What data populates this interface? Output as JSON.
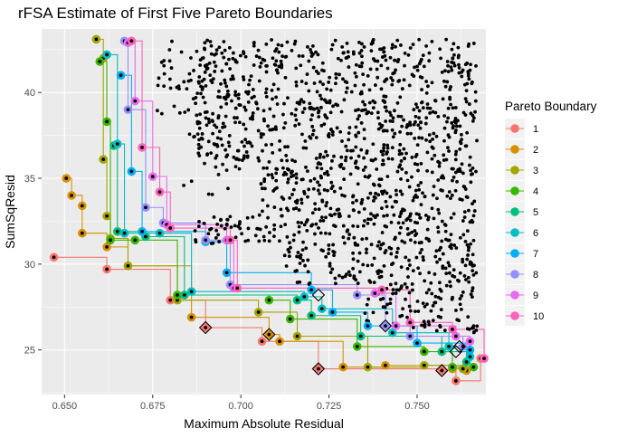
{
  "chart_data": {
    "type": "scatter",
    "title": "rFSA Estimate of First Five Pareto Boundaries",
    "xlabel": "Maximum Absolute Residual",
    "ylabel": "SumSqResid",
    "xlim": [
      0.6435,
      0.7695
    ],
    "ylim": [
      22.4,
      43.7
    ],
    "x_ticks": [
      0.65,
      0.675,
      0.7,
      0.725,
      0.75
    ],
    "x_tick_labels": [
      "0.650",
      "0.675",
      "0.700",
      "0.725",
      "0.750"
    ],
    "y_ticks": [
      25,
      30,
      35,
      40
    ],
    "y_tick_labels": [
      "25",
      "30",
      "35",
      "40"
    ],
    "grid": true,
    "legend": {
      "title": "Pareto Boundary",
      "position": "right",
      "labels": [
        "1",
        "2",
        "3",
        "4",
        "5",
        "6",
        "7",
        "8",
        "9",
        "10"
      ],
      "colors": [
        "#F8766D",
        "#D89000",
        "#A3A500",
        "#39B600",
        "#00BF7D",
        "#00BFC4",
        "#00B0F6",
        "#9590FF",
        "#E76BF3",
        "#FF62BC"
      ]
    },
    "series": [
      {
        "name": "1",
        "color": "#F8766D",
        "points": [
          [
            0.647,
            30.4
          ],
          [
            0.662,
            29.7
          ],
          [
            0.68,
            27.9
          ],
          [
            0.69,
            26.3
          ],
          [
            0.706,
            25.5
          ],
          [
            0.722,
            23.9
          ],
          [
            0.757,
            23.8
          ],
          [
            0.761,
            23.2
          ],
          [
            0.768,
            24.5
          ]
        ]
      },
      {
        "name": "2",
        "color": "#D89000",
        "points": [
          [
            0.6505,
            35.0
          ],
          [
            0.652,
            34.0
          ],
          [
            0.655,
            33.4
          ],
          [
            0.655,
            31.8
          ],
          [
            0.662,
            31.0
          ],
          [
            0.668,
            29.9
          ],
          [
            0.686,
            26.9
          ],
          [
            0.708,
            25.9
          ],
          [
            0.711,
            25.5
          ],
          [
            0.729,
            24.0
          ],
          [
            0.741,
            24.1
          ],
          [
            0.76,
            23.9
          ],
          [
            0.764,
            23.8
          ]
        ]
      },
      {
        "name": "3",
        "color": "#A3A500",
        "points": [
          [
            0.659,
            43.1
          ],
          [
            0.661,
            42.0
          ],
          [
            0.661,
            36.1
          ],
          [
            0.662,
            32.8
          ],
          [
            0.663,
            31.5
          ],
          [
            0.668,
            29.9
          ],
          [
            0.682,
            27.9
          ],
          [
            0.705,
            27.2
          ],
          [
            0.716,
            25.8
          ],
          [
            0.736,
            24.0
          ],
          [
            0.752,
            24.1
          ],
          [
            0.763,
            23.9
          ]
        ]
      },
      {
        "name": "4",
        "color": "#39B600",
        "points": [
          [
            0.66,
            41.8
          ],
          [
            0.662,
            38.3
          ],
          [
            0.663,
            31.4
          ],
          [
            0.67,
            31.4
          ],
          [
            0.682,
            28.2
          ],
          [
            0.708,
            27.9
          ],
          [
            0.714,
            26.8
          ],
          [
            0.733,
            25.2
          ],
          [
            0.752,
            24.9
          ],
          [
            0.76,
            24.0
          ],
          [
            0.766,
            24.0
          ]
        ]
      },
      {
        "name": "5",
        "color": "#00BF7D",
        "points": [
          [
            0.664,
            36.9
          ],
          [
            0.665,
            31.9
          ],
          [
            0.673,
            31.6
          ],
          [
            0.684,
            28.2
          ],
          [
            0.716,
            27.9
          ],
          [
            0.72,
            27.0
          ],
          [
            0.734,
            25.8
          ],
          [
            0.757,
            24.9
          ],
          [
            0.764,
            24.3
          ]
        ]
      },
      {
        "name": "6",
        "color": "#00BFC4",
        "points": [
          [
            0.662,
            42.2
          ],
          [
            0.665,
            37.0
          ],
          [
            0.667,
            31.8
          ],
          [
            0.677,
            31.8
          ],
          [
            0.686,
            28.4
          ],
          [
            0.718,
            28.1
          ],
          [
            0.723,
            27.4
          ],
          [
            0.743,
            26.0
          ],
          [
            0.759,
            25.2
          ],
          [
            0.765,
            24.6
          ]
        ]
      },
      {
        "name": "7",
        "color": "#00B0F6",
        "points": [
          [
            0.666,
            41.0
          ],
          [
            0.669,
            35.4
          ],
          [
            0.672,
            31.9
          ],
          [
            0.69,
            31.3
          ],
          [
            0.696,
            29.5
          ],
          [
            0.72,
            28.5
          ],
          [
            0.726,
            27.2
          ],
          [
            0.736,
            26.4
          ],
          [
            0.75,
            25.4
          ],
          [
            0.765,
            25.0
          ]
        ]
      },
      {
        "name": "8",
        "color": "#9590FF",
        "points": [
          [
            0.667,
            43.0
          ],
          [
            0.668,
            39.0
          ],
          [
            0.673,
            33.3
          ],
          [
            0.678,
            32.4
          ],
          [
            0.69,
            31.4
          ],
          [
            0.697,
            28.8
          ],
          [
            0.733,
            28.2
          ],
          [
            0.741,
            26.4
          ],
          [
            0.748,
            25.8
          ],
          [
            0.763,
            25.2
          ]
        ]
      },
      {
        "name": "9",
        "color": "#E76BF3",
        "points": [
          [
            0.668,
            42.9
          ],
          [
            0.67,
            39.5
          ],
          [
            0.675,
            35.1
          ],
          [
            0.679,
            32.3
          ],
          [
            0.696,
            31.4
          ],
          [
            0.698,
            28.6
          ],
          [
            0.738,
            28.3
          ],
          [
            0.744,
            26.4
          ],
          [
            0.761,
            25.8
          ],
          [
            0.765,
            25.5
          ]
        ]
      },
      {
        "name": "10",
        "color": "#FF62BC",
        "points": [
          [
            0.669,
            43.0
          ],
          [
            0.672,
            36.8
          ],
          [
            0.677,
            34.2
          ],
          [
            0.68,
            32.1
          ],
          [
            0.697,
            31.4
          ],
          [
            0.699,
            28.6
          ],
          [
            0.74,
            28.5
          ],
          [
            0.748,
            26.6
          ],
          [
            0.76,
            26.2
          ],
          [
            0.769,
            24.5
          ]
        ]
      }
    ],
    "highlighted_points": [
      [
        0.69,
        26.3
      ],
      [
        0.708,
        25.9
      ],
      [
        0.722,
        23.9
      ],
      [
        0.722,
        28.2
      ],
      [
        0.741,
        26.4
      ],
      [
        0.757,
        23.8
      ],
      [
        0.761,
        24.9
      ],
      [
        0.762,
        25.2
      ]
    ]
  }
}
